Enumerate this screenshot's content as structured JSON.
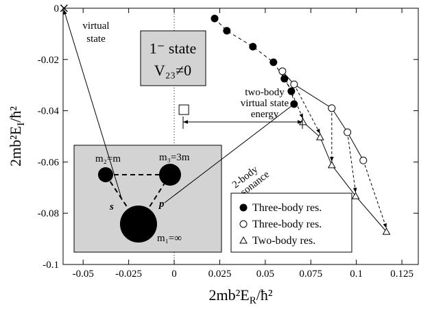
{
  "chart_data": {
    "type": "scatter",
    "xlabel_parts": [
      "2mb²E",
      "R",
      "/ħ²"
    ],
    "ylabel_parts": [
      "2mb²E",
      "I",
      "/ħ²"
    ],
    "xlim": [
      -0.061,
      0.134
    ],
    "ylim": [
      -0.1,
      0
    ],
    "xticks": [
      -0.05,
      -0.025,
      0,
      0.025,
      0.05,
      0.075,
      0.1,
      0.125
    ],
    "yticks": [
      0,
      -0.02,
      -0.04,
      -0.06,
      -0.08,
      -0.1
    ],
    "series": [
      {
        "name": "Three-body res.",
        "marker": "filled-circle",
        "line": "dashed",
        "color": "#000000",
        "x": [
          0.0222,
          0.0289,
          0.0432,
          0.0545,
          0.0605,
          0.0643,
          0.0658
        ],
        "values": [
          -0.004,
          -0.0088,
          -0.015,
          -0.0211,
          -0.0275,
          -0.0324,
          -0.0374
        ]
      },
      {
        "name": "Three-body res.",
        "marker": "open-circle",
        "line": "solid",
        "color": "#000000",
        "x": [
          0.0594,
          0.0658,
          0.0865,
          0.0951,
          0.1038
        ],
        "values": [
          -0.0246,
          -0.0297,
          -0.039,
          -0.0484,
          -0.0594
        ]
      },
      {
        "name": "Two-body res.",
        "marker": "triangle",
        "line": "solid",
        "color": "#000000",
        "x": [
          0.0707,
          0.0801,
          0.0865,
          0.0996,
          0.1165
        ],
        "values": [
          -0.0444,
          -0.0503,
          -0.0612,
          -0.0733,
          -0.0872
        ]
      }
    ],
    "virtual_state_point": {
      "x": -0.0605,
      "value": 0
    },
    "two_body_virtual_point": {
      "x": 0.0053,
      "value": -0.0396
    },
    "annotations": {
      "virtual_state": [
        "virtual",
        "state"
      ],
      "state_box": [
        "1⁻ state",
        "V₂₃≠0"
      ],
      "two_body_virtual": [
        "two-body",
        "virtual state",
        "energy"
      ],
      "resonance": [
        "2-body",
        "resonance"
      ],
      "masses": [
        "m₂=m",
        "m₃=3m",
        "m₁=∞"
      ],
      "bonds": [
        "s",
        "p"
      ]
    }
  }
}
